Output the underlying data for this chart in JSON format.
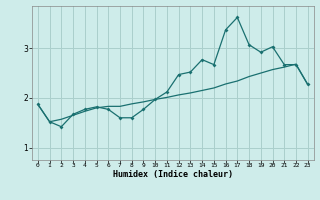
{
  "xlabel": "Humidex (Indice chaleur)",
  "background_color": "#ceecea",
  "line_color": "#1a7070",
  "grid_color": "#aacfcc",
  "xlim": [
    -0.5,
    23.5
  ],
  "ylim": [
    0.75,
    3.85
  ],
  "yticks": [
    1,
    2,
    3
  ],
  "xticks": [
    0,
    1,
    2,
    3,
    4,
    5,
    6,
    7,
    8,
    9,
    10,
    11,
    12,
    13,
    14,
    15,
    16,
    17,
    18,
    19,
    20,
    21,
    22,
    23
  ],
  "line1_x": [
    0,
    1,
    2,
    3,
    4,
    5,
    6,
    7,
    8,
    9,
    10,
    11,
    12,
    13,
    14,
    15,
    16,
    17,
    18,
    19,
    20,
    21,
    22,
    23
  ],
  "line1_y": [
    1.87,
    1.52,
    1.42,
    1.67,
    1.77,
    1.82,
    1.77,
    1.6,
    1.6,
    1.77,
    1.97,
    2.12,
    2.47,
    2.52,
    2.77,
    2.67,
    3.37,
    3.62,
    3.07,
    2.92,
    3.03,
    2.67,
    2.67,
    2.27
  ],
  "line2_x": [
    0,
    1,
    2,
    3,
    4,
    5,
    6,
    7,
    8,
    9,
    10,
    11,
    12,
    13,
    14,
    15,
    16,
    17,
    18,
    19,
    20,
    21,
    22,
    23
  ],
  "line2_y": [
    1.87,
    1.52,
    1.57,
    1.65,
    1.73,
    1.8,
    1.83,
    1.83,
    1.88,
    1.92,
    1.97,
    2.01,
    2.06,
    2.1,
    2.15,
    2.2,
    2.28,
    2.34,
    2.43,
    2.5,
    2.57,
    2.62,
    2.68,
    2.27
  ]
}
